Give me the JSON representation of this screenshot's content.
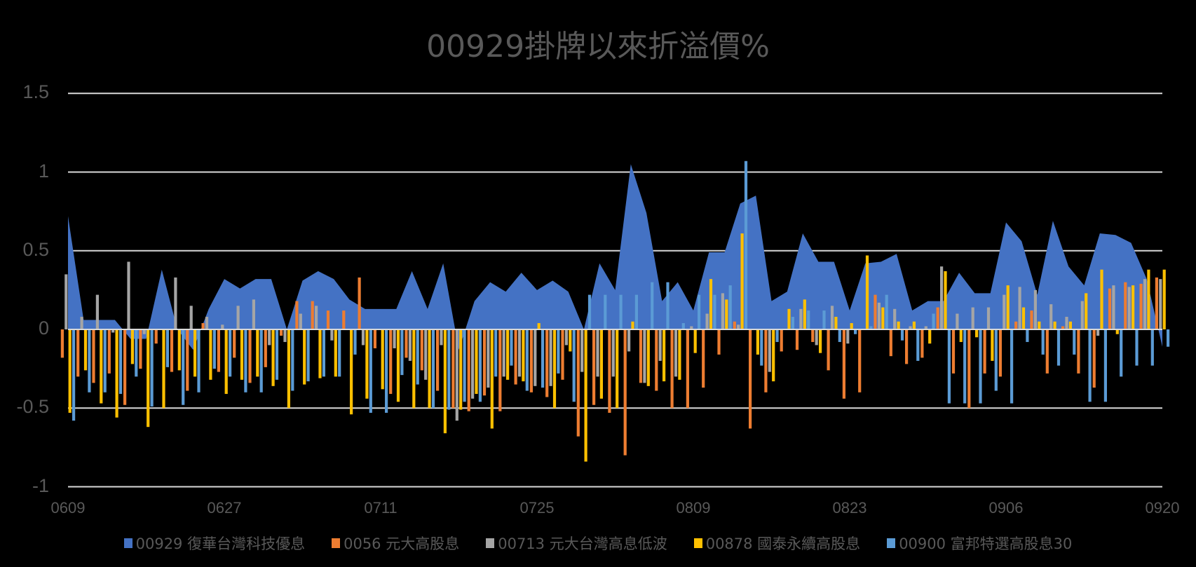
{
  "chart_data": {
    "type": "bar+area",
    "title": "00929掛牌以來折溢價%",
    "xlabel": "",
    "ylabel": "",
    "ylim": [
      -1,
      1.5
    ],
    "yticks": [
      "1.5",
      "1",
      "0.5",
      "0",
      "-0.5",
      "-1"
    ],
    "ytick_values": [
      1.5,
      1,
      0.5,
      0,
      -0.5,
      -1
    ],
    "xtick_labels": [
      "0609",
      "0627",
      "0711",
      "0725",
      "0809",
      "0823",
      "0906",
      "0920"
    ],
    "xtick_every": 10,
    "grid": true,
    "legend_position": "bottom",
    "series": [
      {
        "name": "00929 復華台灣科技優息",
        "type": "area",
        "color": "#4472C4",
        "values": [
          0.72,
          0.06,
          0.06,
          0.06,
          -0.06,
          -0.06,
          0.38,
          0.0,
          -0.13,
          0.13,
          0.32,
          0.26,
          0.32,
          0.32,
          0.0,
          0.31,
          0.37,
          0.32,
          0.19,
          0.13,
          0.13,
          0.13,
          0.37,
          0.13,
          0.42,
          -0.13,
          0.18,
          0.3,
          0.24,
          0.36,
          0.25,
          0.31,
          0.24,
          0.0,
          0.42,
          0.25,
          1.05,
          0.74,
          0.18,
          0.3,
          0.12,
          0.49,
          0.49,
          0.8,
          0.85,
          0.18,
          0.24,
          0.61,
          0.43,
          0.43,
          0.12,
          0.42,
          0.43,
          0.48,
          0.12,
          0.18,
          0.18,
          0.36,
          0.23,
          0.23,
          0.68,
          0.56,
          0.22,
          0.69,
          0.4,
          0.28,
          0.61,
          0.6,
          0.55,
          0.32,
          -0.11
        ]
      },
      {
        "name": "0056 元大高股息",
        "type": "bar",
        "color": "#ED7D31",
        "values": [
          -0.18,
          -0.3,
          -0.34,
          -0.28,
          -0.48,
          -0.25,
          -0.09,
          -0.27,
          -0.39,
          0.04,
          -0.27,
          -0.18,
          -0.34,
          -0.24,
          -0.04,
          0.18,
          0.18,
          0.12,
          0.12,
          0.33,
          -0.12,
          -0.41,
          -0.18,
          -0.26,
          -0.39,
          -0.5,
          -0.52,
          -0.42,
          -0.52,
          -0.35,
          -0.4,
          -0.43,
          -0.32,
          -0.68,
          -0.48,
          -0.53,
          -0.8,
          -0.34,
          -0.39,
          -0.5,
          -0.5,
          -0.37,
          -0.16,
          0.05,
          -0.63,
          -0.4,
          -0.14,
          -0.13,
          -0.08,
          -0.26,
          -0.44,
          -0.4,
          0.22,
          -0.17,
          -0.22,
          -0.18,
          0.14,
          -0.28,
          -0.5,
          -0.28,
          -0.3,
          0.05,
          0.12,
          -0.28,
          0.02,
          -0.28,
          -0.37,
          0.26,
          0.3,
          0.29,
          0.33
        ]
      },
      {
        "name": "00713 元大台灣高息低波",
        "type": "bar",
        "color": "#A5A5A5",
        "values": [
          0.35,
          0.08,
          0.22,
          -0.02,
          0.43,
          -0.03,
          0.0,
          0.33,
          0.15,
          0.08,
          0.03,
          0.15,
          0.19,
          -0.1,
          -0.08,
          0.1,
          0.15,
          -0.07,
          0.0,
          -0.1,
          0.0,
          -0.12,
          -0.2,
          -0.32,
          -0.1,
          -0.58,
          -0.44,
          -0.37,
          -0.3,
          -0.3,
          -0.36,
          -0.36,
          -0.1,
          -0.27,
          -0.3,
          -0.3,
          -0.14,
          -0.34,
          -0.2,
          -0.3,
          0.02,
          0.1,
          0.23,
          0.03,
          0.0,
          -0.27,
          0.0,
          0.13,
          -0.1,
          0.15,
          -0.09,
          0.0,
          0.17,
          0.13,
          0.02,
          0.02,
          0.4,
          0.1,
          0.14,
          0.14,
          0.22,
          0.27,
          0.25,
          0.16,
          0.08,
          0.18,
          -0.04,
          0.28,
          0.27,
          0.32,
          0.32
        ]
      },
      {
        "name": "00878 國泰永續高股息",
        "type": "bar",
        "color": "#FFC000",
        "values": [
          -0.53,
          -0.26,
          -0.47,
          -0.56,
          -0.22,
          -0.62,
          -0.5,
          -0.26,
          -0.3,
          -0.32,
          -0.41,
          -0.32,
          -0.3,
          -0.36,
          -0.5,
          -0.35,
          -0.31,
          -0.3,
          -0.54,
          -0.44,
          -0.38,
          -0.46,
          -0.5,
          -0.5,
          -0.66,
          -0.51,
          -0.41,
          -0.63,
          -0.32,
          -0.33,
          0.04,
          -0.5,
          -0.14,
          -0.84,
          -0.44,
          -0.5,
          0.05,
          -0.36,
          -0.33,
          -0.32,
          -0.15,
          0.32,
          0.19,
          0.61,
          -0.16,
          -0.33,
          0.13,
          0.19,
          -0.15,
          0.08,
          0.04,
          0.47,
          0.14,
          0.05,
          0.05,
          -0.09,
          0.37,
          -0.08,
          -0.05,
          -0.2,
          0.28,
          0.14,
          0.05,
          0.05,
          0.05,
          0.23,
          0.38,
          -0.03,
          0.28,
          0.38,
          0.38
        ]
      },
      {
        "name": "00900 富邦特選高股息30",
        "type": "bar",
        "color": "#5B9BD5",
        "values": [
          -0.58,
          -0.4,
          -0.4,
          -0.41,
          -0.3,
          -0.49,
          -0.24,
          -0.48,
          -0.4,
          -0.25,
          -0.3,
          -0.4,
          -0.4,
          -0.32,
          -0.39,
          -0.33,
          -0.3,
          -0.3,
          -0.16,
          -0.53,
          -0.53,
          -0.29,
          -0.35,
          -0.5,
          -0.51,
          -0.46,
          -0.46,
          -0.3,
          -0.23,
          -0.39,
          -0.37,
          -0.28,
          -0.46,
          0.22,
          0.22,
          0.22,
          0.22,
          0.3,
          0.3,
          0.04,
          0.22,
          0.22,
          0.28,
          1.07,
          -0.23,
          -0.08,
          0.08,
          0.12,
          0.12,
          -0.08,
          -0.03,
          0.02,
          0.22,
          -0.07,
          -0.2,
          0.1,
          -0.47,
          -0.47,
          -0.47,
          -0.39,
          -0.47,
          -0.08,
          -0.16,
          -0.23,
          -0.16,
          -0.46,
          -0.46,
          -0.3,
          -0.23,
          -0.23,
          -0.11
        ]
      }
    ]
  },
  "legend": [
    {
      "label": "00929 復華台灣科技優息",
      "color": "#4472C4"
    },
    {
      "label": "0056 元大高股息",
      "color": "#ED7D31"
    },
    {
      "label": "00713 元大台灣高息低波",
      "color": "#A5A5A5"
    },
    {
      "label": "00878 國泰永續高股息",
      "color": "#FFC000"
    },
    {
      "label": "00900 富邦特選高股息30",
      "color": "#5B9BD5"
    }
  ],
  "colors": {
    "background": "#000000",
    "text": "#595959",
    "grid": "#D9D9D9"
  }
}
